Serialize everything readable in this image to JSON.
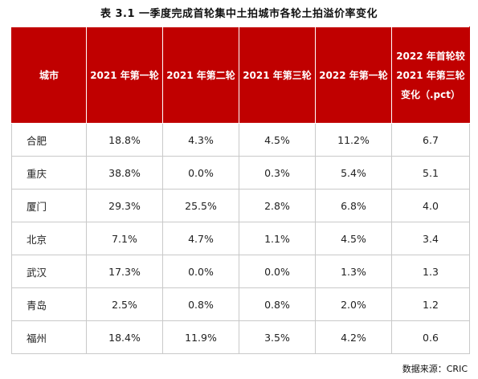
{
  "title": "表 3.1   一季度完成首轮集中土拍城市各轮土拍溢价率变化",
  "headers": [
    "城市",
    "2021 年第一轮",
    "2021 年第二轮",
    "2021 年第三轮",
    "2022 年第一轮",
    "2022 年首轮较 2021 年第三轮变化（.pct）"
  ],
  "rows": [
    [
      "合肥",
      "18.8%",
      "4.3%",
      "4.5%",
      "11.2%",
      "6.7"
    ],
    [
      "重庆",
      "38.8%",
      "0.0%",
      "0.3%",
      "5.4%",
      "5.1"
    ],
    [
      "厦门",
      "29.3%",
      "25.5%",
      "2.8%",
      "6.8%",
      "4.0"
    ],
    [
      "北京",
      "7.1%",
      "4.7%",
      "1.1%",
      "4.5%",
      "3.4"
    ],
    [
      "武汉",
      "17.3%",
      "0.0%",
      "0.0%",
      "1.3%",
      "1.3"
    ],
    [
      "青岛",
      "2.5%",
      "0.8%",
      "0.8%",
      "2.0%",
      "1.2"
    ],
    [
      "福州",
      "18.4%",
      "11.9%",
      "3.5%",
      "4.2%",
      "0.6"
    ]
  ],
  "source": "数据来源：CRIC",
  "colors": {
    "header_bg": "#c00000",
    "header_text": "#ffffff",
    "grid": "#c9c9c9"
  }
}
